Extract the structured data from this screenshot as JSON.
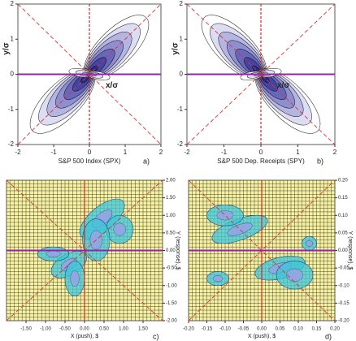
{
  "chart_data": [
    {
      "type": "contour",
      "title": "S&P 500 Index (SPX)",
      "caption": "a)",
      "xlabel": "x/σ",
      "ylabel": "y/σ",
      "xlim": [
        -2,
        2
      ],
      "ylim": [
        -2,
        2
      ],
      "xticks": [
        -2,
        -1,
        0,
        1,
        2
      ],
      "yticks": [
        -2,
        -1,
        0,
        1,
        2
      ],
      "lobes": "diagonal"
    },
    {
      "type": "contour",
      "title": "S&P 500 Dep. Receipts (SPY)",
      "caption": "b)",
      "xlabel": "x/σ",
      "ylabel": "y/σ",
      "xlim": [
        -2,
        2
      ],
      "ylim": [
        -2,
        2
      ],
      "xticks": [
        -2,
        -1,
        0,
        1,
        2
      ],
      "yticks": [
        -2,
        -1,
        0,
        1,
        2
      ],
      "lobes": "antidiagonal"
    },
    {
      "type": "contour",
      "caption": "c)",
      "xlabel": "X (push), $",
      "ylabel": "Y (response), $",
      "grid": true,
      "xlim": [
        -2,
        2
      ],
      "ylim": [
        -2,
        2
      ],
      "xticks": [
        {
          "value": -1.5,
          "label": "-1.50"
        },
        {
          "value": -1,
          "label": "-1.00"
        },
        {
          "value": -0.5,
          "label": "-0.50"
        },
        {
          "value": 0,
          "label": "0.00"
        },
        {
          "value": 0.5,
          "label": "0.50"
        },
        {
          "value": 1,
          "label": "1.00"
        },
        {
          "value": 1.5,
          "label": "1.50"
        }
      ],
      "yticks": [
        {
          "value": 2,
          "label": "2.00"
        },
        {
          "value": 1.5,
          "label": "1.50"
        },
        {
          "value": 1,
          "label": "1.00"
        },
        {
          "value": 0.5,
          "label": "0.50"
        },
        {
          "value": 0,
          "label": "0.00"
        },
        {
          "value": -0.5,
          "label": "-0.50"
        },
        {
          "value": -1,
          "label": "-1.00"
        },
        {
          "value": -1.5,
          "label": "-1.50"
        },
        {
          "value": -2,
          "label": "-2.00"
        }
      ]
    },
    {
      "type": "contour",
      "caption": "d)",
      "xlabel": "X (push), $",
      "ylabel": "Y (response), $",
      "grid": true,
      "xlim": [
        -0.2,
        0.2
      ],
      "ylim": [
        -0.2,
        0.2
      ],
      "xticks": [
        {
          "value": -0.2,
          "label": "-0.20"
        },
        {
          "value": -0.15,
          "label": "-0.15"
        },
        {
          "value": -0.1,
          "label": "-0.10"
        },
        {
          "value": -0.05,
          "label": "-0.05"
        },
        {
          "value": 0,
          "label": "0.00"
        },
        {
          "value": 0.05,
          "label": "0.05"
        },
        {
          "value": 0.1,
          "label": "0.10"
        },
        {
          "value": 0.15,
          "label": "0.15"
        },
        {
          "value": 0.2,
          "label": "0.20"
        }
      ],
      "yticks": [
        {
          "value": 0.2,
          "label": "0.20"
        },
        {
          "value": 0.15,
          "label": "0.15"
        },
        {
          "value": 0.1,
          "label": "0.10"
        },
        {
          "value": 0.05,
          "label": "0.05"
        },
        {
          "value": 0,
          "label": "0.00"
        },
        {
          "value": -0.05,
          "label": "-0.05"
        },
        {
          "value": -0.1,
          "label": "-0.10"
        },
        {
          "value": -0.15,
          "label": "-0.15"
        },
        {
          "value": -0.2,
          "label": "-0.20"
        }
      ]
    }
  ]
}
